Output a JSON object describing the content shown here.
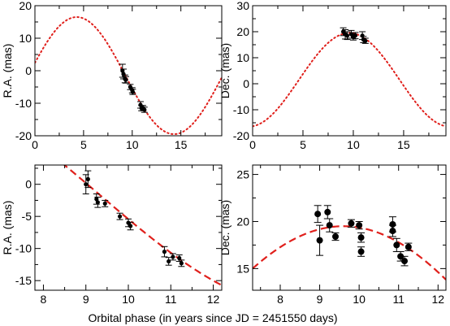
{
  "figure_xlabel": "Orbital phase (in years since JD = 2451550 days)",
  "colors": {
    "model": "#e0201c",
    "points": "#000000",
    "frame": "#000000"
  },
  "chart_data": [
    {
      "id": "tl",
      "type": "scatter",
      "ylabel": "R.A. (mas)",
      "xlim": [
        0,
        19.2
      ],
      "ylim": [
        -20,
        20
      ],
      "xticks": [
        0,
        5,
        10,
        15
      ],
      "yticks": [
        -20,
        -10,
        0,
        10,
        20
      ],
      "xtick_labels": [
        "0",
        "5",
        "10",
        "15"
      ],
      "ytick_labels": [
        "-20",
        "-10",
        "0",
        "10",
        "20"
      ],
      "model": {
        "style": "dotted",
        "amp": 18,
        "period": 20,
        "peak_x": 4.3,
        "offset": -1.5
      },
      "points": [
        {
          "x": 9.0,
          "y": 0.0,
          "err": 2.0,
          "marker": "small"
        },
        {
          "x": 9.1,
          "y": -1.0,
          "err": 1.5,
          "marker": "small"
        },
        {
          "x": 9.25,
          "y": -2.5,
          "err": 1.2,
          "marker": "small"
        },
        {
          "x": 9.35,
          "y": -2.8,
          "err": 1.0,
          "marker": "small"
        },
        {
          "x": 9.8,
          "y": -5.0,
          "err": 0.8,
          "marker": "small"
        },
        {
          "x": 10.0,
          "y": -6.0,
          "err": 0.8,
          "marker": "small"
        },
        {
          "x": 10.05,
          "y": -6.5,
          "err": 0.8,
          "marker": "small"
        },
        {
          "x": 10.85,
          "y": -10.5,
          "err": 1.0,
          "marker": "small"
        },
        {
          "x": 10.95,
          "y": -11.5,
          "err": 0.8,
          "marker": "small"
        },
        {
          "x": 11.1,
          "y": -11.5,
          "err": 0.8,
          "marker": "small"
        },
        {
          "x": 11.25,
          "y": -12.0,
          "err": 0.8,
          "marker": "small"
        }
      ]
    },
    {
      "id": "tr",
      "type": "scatter",
      "ylabel": "Dec. (mas)",
      "xlim": [
        0,
        19.2
      ],
      "ylim": [
        -20,
        30
      ],
      "xticks": [
        0,
        5,
        10,
        15
      ],
      "yticks": [
        -20,
        -10,
        0,
        10,
        20,
        30
      ],
      "xtick_labels": [
        "0",
        "5",
        "10",
        "15"
      ],
      "ytick_labels": [
        "-20",
        "-10",
        "0",
        "10",
        "20",
        "30"
      ],
      "model": {
        "style": "dotted",
        "amp": 18,
        "period": 20,
        "peak_x": 9.6,
        "offset": 1.5
      },
      "points": [
        {
          "x": 9.0,
          "y": 20.0,
          "err": 1.5,
          "marker": "small"
        },
        {
          "x": 9.2,
          "y": 19.0,
          "err": 1.8,
          "marker": "small"
        },
        {
          "x": 9.4,
          "y": 18.5,
          "err": 1.5,
          "marker": "small"
        },
        {
          "x": 9.8,
          "y": 19.0,
          "err": 1.5,
          "marker": "small"
        },
        {
          "x": 10.0,
          "y": 18.0,
          "err": 1.2,
          "marker": "small"
        },
        {
          "x": 10.2,
          "y": 18.5,
          "err": 1.2,
          "marker": "small"
        },
        {
          "x": 10.9,
          "y": 18.5,
          "err": 1.5,
          "marker": "small"
        },
        {
          "x": 11.0,
          "y": 17.0,
          "err": 1.2,
          "marker": "small"
        },
        {
          "x": 11.2,
          "y": 16.5,
          "err": 1.0,
          "marker": "small"
        }
      ]
    },
    {
      "id": "bl",
      "type": "scatter",
      "ylabel": "R.A. (mas)",
      "xlim": [
        7.8,
        12.2
      ],
      "ylim": [
        -16.5,
        3
      ],
      "xticks": [
        8,
        9,
        10,
        11,
        12
      ],
      "yticks": [
        -15,
        -10,
        -5,
        0
      ],
      "xtick_labels": [
        "8",
        "9",
        "10",
        "11",
        "12"
      ],
      "ytick_labels": [
        "-15",
        "-10",
        "-5",
        "0"
      ],
      "model": {
        "style": "dashed",
        "amp": 18,
        "period": 20,
        "peak_x": 4.3,
        "offset": -1.5
      },
      "points": [
        {
          "x": 9.0,
          "y": 0.0,
          "err": 1.5,
          "marker": "small"
        },
        {
          "x": 9.05,
          "y": 0.8,
          "err": 1.3,
          "marker": "small"
        },
        {
          "x": 9.25,
          "y": -2.3,
          "err": 0.8,
          "marker": "small"
        },
        {
          "x": 9.28,
          "y": -2.8,
          "err": 0.8,
          "marker": "small"
        },
        {
          "x": 9.45,
          "y": -3.0,
          "err": 0.5,
          "marker": "small"
        },
        {
          "x": 9.8,
          "y": -5.0,
          "err": 0.5,
          "marker": "small"
        },
        {
          "x": 10.0,
          "y": -6.0,
          "err": 0.6,
          "marker": "small"
        },
        {
          "x": 10.05,
          "y": -6.5,
          "err": 0.6,
          "marker": "small"
        },
        {
          "x": 10.85,
          "y": -10.5,
          "err": 0.8,
          "marker": "small"
        },
        {
          "x": 10.95,
          "y": -12.0,
          "err": 0.6,
          "marker": "small"
        },
        {
          "x": 11.05,
          "y": -11.3,
          "err": 0.5,
          "marker": "small"
        },
        {
          "x": 11.2,
          "y": -11.5,
          "err": 0.5,
          "marker": "small"
        },
        {
          "x": 11.25,
          "y": -12.3,
          "err": 0.5,
          "marker": "small"
        }
      ]
    },
    {
      "id": "br",
      "type": "scatter",
      "ylabel": "Dec. (mas)",
      "xlim": [
        7.3,
        12.2
      ],
      "ylim": [
        12.7,
        26
      ],
      "xticks": [
        8,
        9,
        10,
        11,
        12
      ],
      "yticks": [
        15,
        20,
        25
      ],
      "xtick_labels": [
        "8",
        "9",
        "10",
        "11",
        "12"
      ],
      "ytick_labels": [
        "15",
        "20",
        "25"
      ],
      "model": {
        "style": "dashed",
        "amp": 18,
        "period": 20,
        "peak_x": 9.6,
        "offset": 1.5
      },
      "points": [
        {
          "x": 8.95,
          "y": 20.8,
          "err": 0.9,
          "marker": "large"
        },
        {
          "x": 9.0,
          "y": 18.0,
          "err": 1.6,
          "marker": "large"
        },
        {
          "x": 9.2,
          "y": 21.0,
          "err": 0.7,
          "marker": "large"
        },
        {
          "x": 9.25,
          "y": 19.6,
          "err": 0.7,
          "marker": "large"
        },
        {
          "x": 9.4,
          "y": 18.4,
          "err": 0.4,
          "marker": "large"
        },
        {
          "x": 9.8,
          "y": 19.8,
          "err": 0.4,
          "marker": "large"
        },
        {
          "x": 10.0,
          "y": 19.6,
          "err": 0.4,
          "marker": "large"
        },
        {
          "x": 10.05,
          "y": 18.3,
          "err": 0.5,
          "marker": "large"
        },
        {
          "x": 10.05,
          "y": 16.8,
          "err": 0.5,
          "marker": "large"
        },
        {
          "x": 10.85,
          "y": 19.7,
          "err": 0.8,
          "marker": "large"
        },
        {
          "x": 10.85,
          "y": 19.0,
          "err": 0.6,
          "marker": "large"
        },
        {
          "x": 10.95,
          "y": 17.5,
          "err": 0.7,
          "marker": "large"
        },
        {
          "x": 11.05,
          "y": 16.3,
          "err": 0.5,
          "marker": "large"
        },
        {
          "x": 11.15,
          "y": 15.8,
          "err": 0.5,
          "marker": "large"
        },
        {
          "x": 11.25,
          "y": 17.3,
          "err": 0.4,
          "marker": "large"
        }
      ]
    }
  ]
}
